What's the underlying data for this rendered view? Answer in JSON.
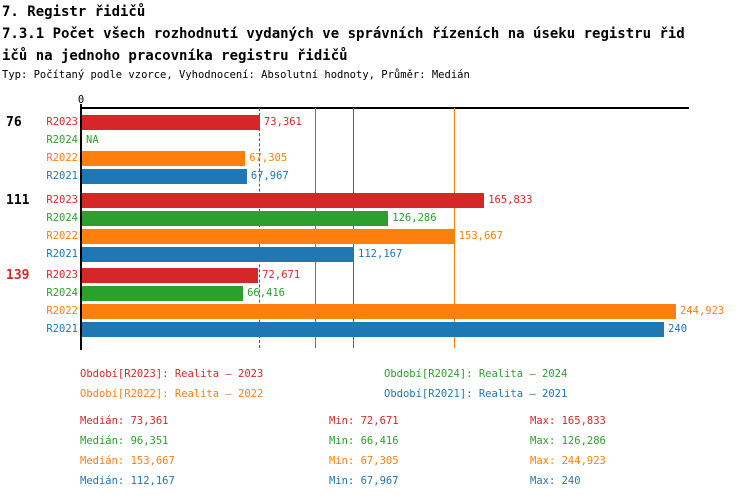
{
  "header": {
    "title": "7. Registr řidičů",
    "subtitle_line1": "7.3.1 Počet všech rozhodnutí vydaných ve správních řízeních na úseku registru řid",
    "subtitle_line2": "ičů na jednoho pracovníka registru řidičů",
    "meta": "Typ: Počítaný podle vzorce, Vyhodnocení: Absolutní hodnoty, Průměr: Medián"
  },
  "colors": {
    "R2023": "#d62728",
    "R2024": "#2ca02c",
    "R2022": "#ff7f0e",
    "R2021": "#1f77b4",
    "axis": "#000000",
    "highlight_group_label": "#d62728"
  },
  "chart_data": {
    "type": "bar",
    "orientation": "horizontal",
    "value_axis": {
      "zero_label": "0",
      "min": 0,
      "max": 250,
      "grid": false
    },
    "series_order": [
      "R2023",
      "R2024",
      "R2022",
      "R2021"
    ],
    "groups": [
      {
        "label": "76",
        "label_color": "#000000",
        "bars": [
          {
            "series": "R2023",
            "value": 73.361,
            "value_label": "73,361"
          },
          {
            "series": "R2024",
            "value": null,
            "value_label": "NA"
          },
          {
            "series": "R2022",
            "value": 67.305,
            "value_label": "67,305"
          },
          {
            "series": "R2021",
            "value": 67.967,
            "value_label": "67,967"
          }
        ]
      },
      {
        "label": "111",
        "label_color": "#000000",
        "bars": [
          {
            "series": "R2023",
            "value": 165.833,
            "value_label": "165,833"
          },
          {
            "series": "R2024",
            "value": 126.286,
            "value_label": "126,286"
          },
          {
            "series": "R2022",
            "value": 153.667,
            "value_label": "153,667"
          },
          {
            "series": "R2021",
            "value": 112.167,
            "value_label": "112,167"
          }
        ]
      },
      {
        "label": "139",
        "label_color": "#d62728",
        "bars": [
          {
            "series": "R2023",
            "value": 72.671,
            "value_label": "72,671"
          },
          {
            "series": "R2024",
            "value": 66.416,
            "value_label": "66,416"
          },
          {
            "series": "R2022",
            "value": 244.923,
            "value_label": "244,923"
          },
          {
            "series": "R2021",
            "value": 240,
            "value_label": "240"
          }
        ]
      }
    ],
    "reference_lines": [
      {
        "series": "R2023",
        "value": 73.361,
        "style": "dashed"
      },
      {
        "series": "R2024",
        "value": 96.351,
        "style": "solid"
      },
      {
        "series": "R2021",
        "value": 112.167,
        "style": "solid"
      },
      {
        "series": "R2022",
        "value": 153.667,
        "style": "solid"
      }
    ]
  },
  "legend": [
    {
      "series": "R2023",
      "label": "Období[R2023]: Realita – 2023"
    },
    {
      "series": "R2024",
      "label": "Období[R2024]: Realita – 2024"
    },
    {
      "series": "R2022",
      "label": "Období[R2022]: Realita – 2022"
    },
    {
      "series": "R2021",
      "label": "Období[R2021]: Realita – 2021"
    }
  ],
  "stats": [
    {
      "series": "R2023",
      "median": "Medián: 73,361",
      "min": "Min: 72,671",
      "max": "Max: 165,833"
    },
    {
      "series": "R2024",
      "median": "Medián: 96,351",
      "min": "Min: 66,416",
      "max": "Max: 126,286"
    },
    {
      "series": "R2022",
      "median": "Medián: 153,667",
      "min": "Min: 67,305",
      "max": "Max: 244,923"
    },
    {
      "series": "R2021",
      "median": "Medián: 112,167",
      "min": "Min: 67,967",
      "max": "Max: 240"
    }
  ]
}
